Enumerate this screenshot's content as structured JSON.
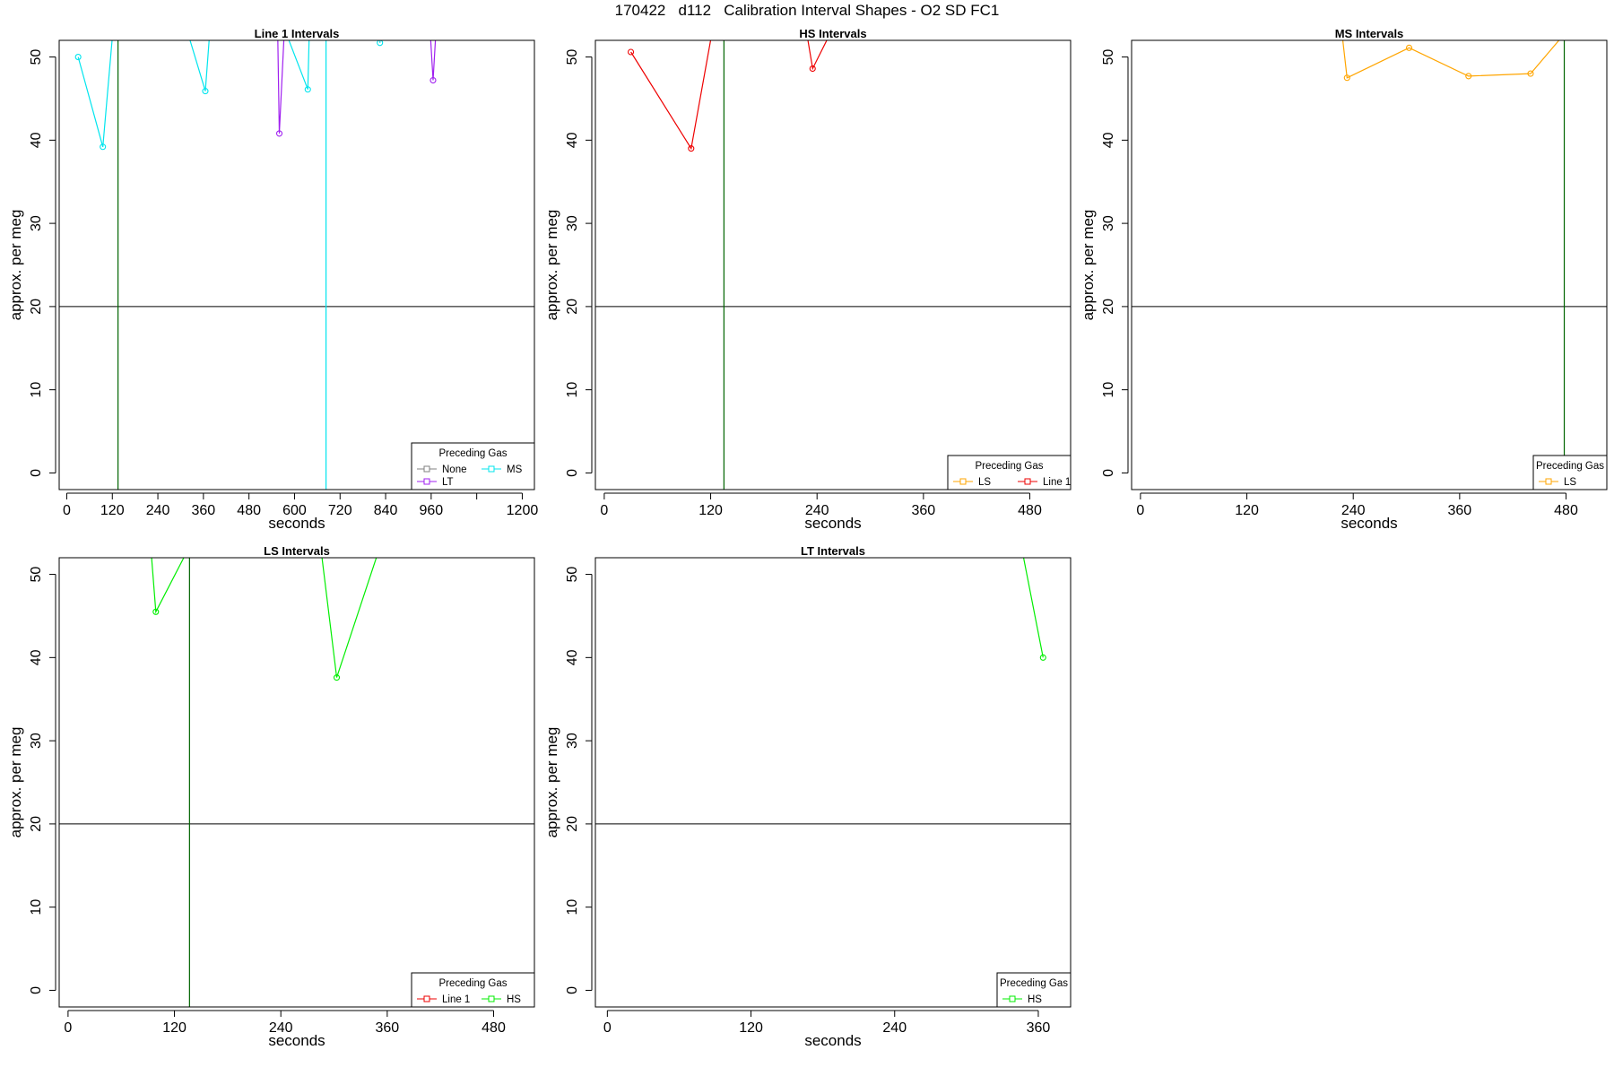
{
  "title": "170422   d112   Calibration Interval Shapes - O2 SD FC1",
  "colors": {
    "None": "#808080",
    "LT": "#a020f0",
    "MS": "#00e5ee",
    "LS": "#ffa500",
    "Line 1": "#ee0000",
    "HS": "#00ee00",
    "ref_vline": "#006400",
    "ref_hline": "#000000"
  },
  "chart_data": [
    {
      "type": "line",
      "title": "Line 1 Intervals",
      "xlabel": "seconds",
      "ylabel": "approx. per meg",
      "xlim": [
        -20,
        1232
      ],
      "ylim": [
        -2,
        52
      ],
      "xticks": [
        0,
        120,
        240,
        360,
        480,
        600,
        720,
        840,
        960,
        1080,
        1200
      ],
      "xtick_labels": [
        "0",
        "120",
        "240",
        "360",
        "480",
        "600",
        "720",
        "840",
        "960",
        "",
        "1200"
      ],
      "yticks": [
        0,
        10,
        20,
        30,
        40,
        50
      ],
      "grid": false,
      "ref_vlines": [
        {
          "x": 135,
          "color": "ref_vline"
        },
        {
          "x": 683,
          "color": "MS"
        }
      ],
      "ref_hline": 20,
      "legend": {
        "title": "Preceding Gas",
        "entries": [
          "None",
          "LT",
          "MS"
        ],
        "columns": 2,
        "position": "bottom-right"
      },
      "series": [
        {
          "name": "MS",
          "segments": [
            [
              [
                30,
                50.0
              ],
              [
                95,
                39.2
              ],
              [
                125,
                55
              ]
            ],
            [
              [
                305,
                55
              ],
              [
                365,
                45.9
              ],
              [
                380,
                55
              ]
            ],
            [
              [
                560,
                55
              ],
              [
                635,
                46.1
              ],
              [
                640,
                55
              ]
            ],
            [
              [
                825,
                51.7
              ],
              [
                830,
                55
              ]
            ]
          ],
          "markers": [
            [
              30,
              50.0
            ],
            [
              95,
              39.2
            ],
            [
              365,
              45.9
            ],
            [
              635,
              46.1
            ],
            [
              825,
              51.7
            ]
          ]
        },
        {
          "name": "LT",
          "segments": [
            [
              [
                555,
                55
              ],
              [
                560,
                40.8
              ],
              [
                575,
                55
              ]
            ],
            [
              [
                955,
                55
              ],
              [
                965,
                47.2
              ],
              [
                975,
                55
              ]
            ]
          ],
          "markers": [
            [
              560,
              40.8
            ],
            [
              965,
              47.2
            ]
          ]
        }
      ]
    },
    {
      "type": "line",
      "title": "HS Intervals",
      "xlabel": "seconds",
      "ylabel": "approx. per meg",
      "xlim": [
        -10,
        526
      ],
      "ylim": [
        -2,
        52
      ],
      "xticks": [
        0,
        120,
        240,
        360,
        480
      ],
      "xtick_labels": [
        "0",
        "120",
        "240",
        "360",
        "480"
      ],
      "yticks": [
        0,
        10,
        20,
        30,
        40,
        50
      ],
      "grid": false,
      "ref_vlines": [
        {
          "x": 135,
          "color": "ref_vline"
        }
      ],
      "ref_hline": 20,
      "legend": {
        "title": "Preceding Gas",
        "entries": [
          "LS",
          "Line 1"
        ],
        "columns": 2,
        "position": "bottom-right"
      },
      "series": [
        {
          "name": "Line 1",
          "segments": [
            [
              [
                30,
                50.6
              ],
              [
                98,
                39.0
              ],
              [
                125,
                55
              ]
            ],
            [
              [
                225,
                55
              ],
              [
                235,
                48.6
              ],
              [
                265,
                55
              ]
            ]
          ],
          "markers": [
            [
              30,
              50.6
            ],
            [
              98,
              39.0
            ],
            [
              235,
              48.6
            ]
          ]
        },
        {
          "name": "LS",
          "segments": [],
          "markers": []
        }
      ]
    },
    {
      "type": "line",
      "title": "MS Intervals",
      "xlabel": "seconds",
      "ylabel": "approx. per meg",
      "xlim": [
        -10,
        526
      ],
      "ylim": [
        -2,
        52
      ],
      "xticks": [
        0,
        120,
        240,
        360,
        480
      ],
      "xtick_labels": [
        "0",
        "120",
        "240",
        "360",
        "480"
      ],
      "yticks": [
        0,
        10,
        20,
        30,
        40,
        50
      ],
      "grid": false,
      "ref_vlines": [
        {
          "x": 478,
          "color": "ref_vline"
        }
      ],
      "ref_hline": 20,
      "legend": {
        "title": "Preceding Gas",
        "entries": [
          "LS"
        ],
        "columns": 1,
        "position": "bottom-right"
      },
      "series": [
        {
          "name": "LS",
          "segments": [
            [
              [
                225,
                55
              ],
              [
                233,
                47.5
              ],
              [
                303,
                51.1
              ],
              [
                370,
                47.7
              ],
              [
                440,
                48.0
              ],
              [
                480,
                53
              ]
            ]
          ],
          "markers": [
            [
              233,
              47.5
            ],
            [
              303,
              51.1
            ],
            [
              370,
              47.7
            ],
            [
              440,
              48.0
            ]
          ]
        }
      ]
    },
    {
      "type": "line",
      "title": "LS Intervals",
      "xlabel": "seconds",
      "ylabel": "approx. per meg",
      "xlim": [
        -10,
        526
      ],
      "ylim": [
        -2,
        52
      ],
      "xticks": [
        0,
        120,
        240,
        360,
        480
      ],
      "xtick_labels": [
        "0",
        "120",
        "240",
        "360",
        "480"
      ],
      "yticks": [
        0,
        10,
        20,
        30,
        40,
        50
      ],
      "grid": false,
      "ref_vlines": [
        {
          "x": 137,
          "color": "ref_vline"
        }
      ],
      "ref_hline": 20,
      "legend": {
        "title": "Preceding Gas",
        "entries": [
          "Line 1",
          "HS"
        ],
        "columns": 2,
        "position": "bottom-right"
      },
      "series": [
        {
          "name": "HS",
          "segments": [
            [
              [
                92,
                55
              ],
              [
                99,
                45.5
              ],
              [
                145,
                55
              ]
            ],
            [
              [
                283,
                55
              ],
              [
                303,
                37.6
              ],
              [
                357,
                55
              ]
            ]
          ],
          "markers": [
            [
              99,
              45.5
            ],
            [
              303,
              37.6
            ]
          ]
        },
        {
          "name": "Line 1",
          "segments": [],
          "markers": []
        }
      ]
    },
    {
      "type": "line",
      "title": "LT Intervals",
      "xlabel": "seconds",
      "ylabel": "approx. per meg",
      "xlim": [
        -10,
        387
      ],
      "ylim": [
        -2,
        52
      ],
      "xticks": [
        0,
        120,
        240,
        360
      ],
      "xtick_labels": [
        "0",
        "120",
        "240",
        "360"
      ],
      "yticks": [
        0,
        10,
        20,
        30,
        40,
        50
      ],
      "grid": false,
      "ref_vlines": [],
      "ref_hline": 20,
      "legend": {
        "title": "Preceding Gas",
        "entries": [
          "HS"
        ],
        "columns": 1,
        "position": "bottom-right"
      },
      "series": [
        {
          "name": "HS",
          "segments": [
            [
              [
                345,
                54
              ],
              [
                364,
                40.0
              ]
            ]
          ],
          "markers": [
            [
              364,
              40.0
            ]
          ]
        }
      ]
    }
  ]
}
